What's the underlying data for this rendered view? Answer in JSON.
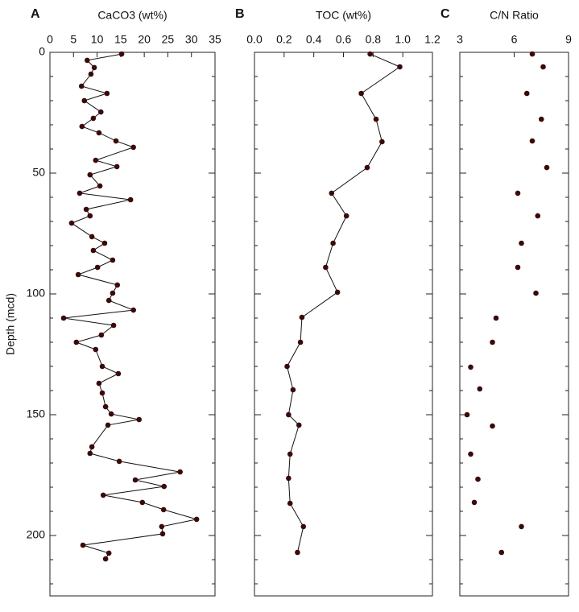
{
  "chart_data": [
    {
      "type": "line",
      "panel": "A",
      "xlabel": "CaCO3 (wt%)",
      "ylabel": "Depth (mcd)",
      "color": "#3a0a0a",
      "xlim": [
        0,
        35
      ],
      "xticks": [
        0,
        5,
        10,
        15,
        20,
        25,
        30,
        35
      ],
      "ylim": [
        0,
        225
      ],
      "yticks": [
        0,
        50,
        100,
        150,
        200
      ],
      "yminorticks": [
        10,
        20,
        30,
        40,
        60,
        70,
        80,
        90,
        110,
        120,
        130,
        140,
        160,
        170,
        180,
        190,
        210,
        220
      ],
      "depth": [
        0.7,
        3.3,
        6.3,
        9,
        14,
        17,
        20,
        24.7,
        27.3,
        30.7,
        33.3,
        36.7,
        39.3,
        44.7,
        47.3,
        50.7,
        55.3,
        58.3,
        61,
        65,
        67.7,
        70.7,
        76.3,
        79,
        82,
        86,
        89,
        92,
        96.3,
        99.7,
        102.7,
        106.7,
        110,
        113,
        117,
        120,
        123,
        130,
        133,
        137,
        141,
        146.7,
        149.7,
        152,
        154.3,
        163.3,
        166,
        169.3,
        173.7,
        177,
        179.7,
        183.3,
        186.3,
        189.3,
        193.3,
        196.3,
        199.3,
        204,
        207.3,
        209.7
      ],
      "values": [
        15.2,
        7.9,
        9.4,
        8.7,
        6.7,
        12.1,
        7.3,
        10.8,
        9.2,
        6.8,
        10.4,
        14.0,
        17.7,
        9.7,
        14.2,
        8.5,
        10.6,
        6.3,
        17.1,
        7.7,
        8.5,
        4.6,
        8.9,
        11.6,
        9.2,
        13.3,
        10.1,
        6.0,
        14.3,
        13.3,
        12.5,
        17.7,
        2.9,
        13.5,
        10.9,
        5.6,
        9.7,
        11.1,
        14.5,
        10.4,
        11.1,
        11.8,
        13.0,
        18.9,
        12.3,
        8.9,
        8.5,
        14.7,
        27.6,
        18.1,
        24.2,
        11.3,
        19.6,
        24.1,
        31.1,
        23.7,
        23.9,
        7.0,
        12.5,
        11.8
      ]
    },
    {
      "type": "line",
      "panel": "B",
      "xlabel": "TOC (wt%)",
      "color": "#3a0a0a",
      "xlim": [
        0,
        1.2
      ],
      "xticks": [
        {
          "value": 0,
          "label": "0.0"
        },
        0.2,
        0.4,
        0.6,
        0.8,
        {
          "value": 1,
          "label": "1.0"
        },
        1.2
      ],
      "depth": [
        0.7,
        6,
        17,
        27.7,
        37,
        47.7,
        58.3,
        67.7,
        79,
        89,
        99.3,
        109.7,
        120,
        130,
        139.7,
        150,
        154.3,
        166.3,
        176.3,
        186.7,
        196.3,
        207
      ],
      "values": [
        0.78,
        0.98,
        0.72,
        0.82,
        0.86,
        0.76,
        0.52,
        0.62,
        0.53,
        0.48,
        0.56,
        0.32,
        0.31,
        0.22,
        0.26,
        0.23,
        0.3,
        0.24,
        0.23,
        0.24,
        0.33,
        0.29
      ]
    },
    {
      "type": "scatter",
      "panel": "C",
      "xlabel": "C/N Ratio",
      "color": "#3a0a0a",
      "xlim": [
        3,
        9
      ],
      "xticks": [
        3,
        6,
        9
      ],
      "depth": [
        0.7,
        6,
        17,
        27.7,
        36.7,
        47.7,
        58.3,
        67.7,
        79,
        89,
        99.7,
        110,
        120,
        130.3,
        139.3,
        150,
        154.7,
        166.3,
        176.7,
        186.3,
        196.3,
        207
      ],
      "values": [
        7.0,
        7.6,
        6.7,
        7.5,
        7.0,
        7.8,
        6.2,
        7.3,
        6.4,
        6.2,
        7.2,
        5.0,
        4.8,
        3.6,
        4.1,
        3.4,
        4.8,
        3.6,
        4.0,
        3.8,
        6.4,
        5.3
      ]
    }
  ]
}
